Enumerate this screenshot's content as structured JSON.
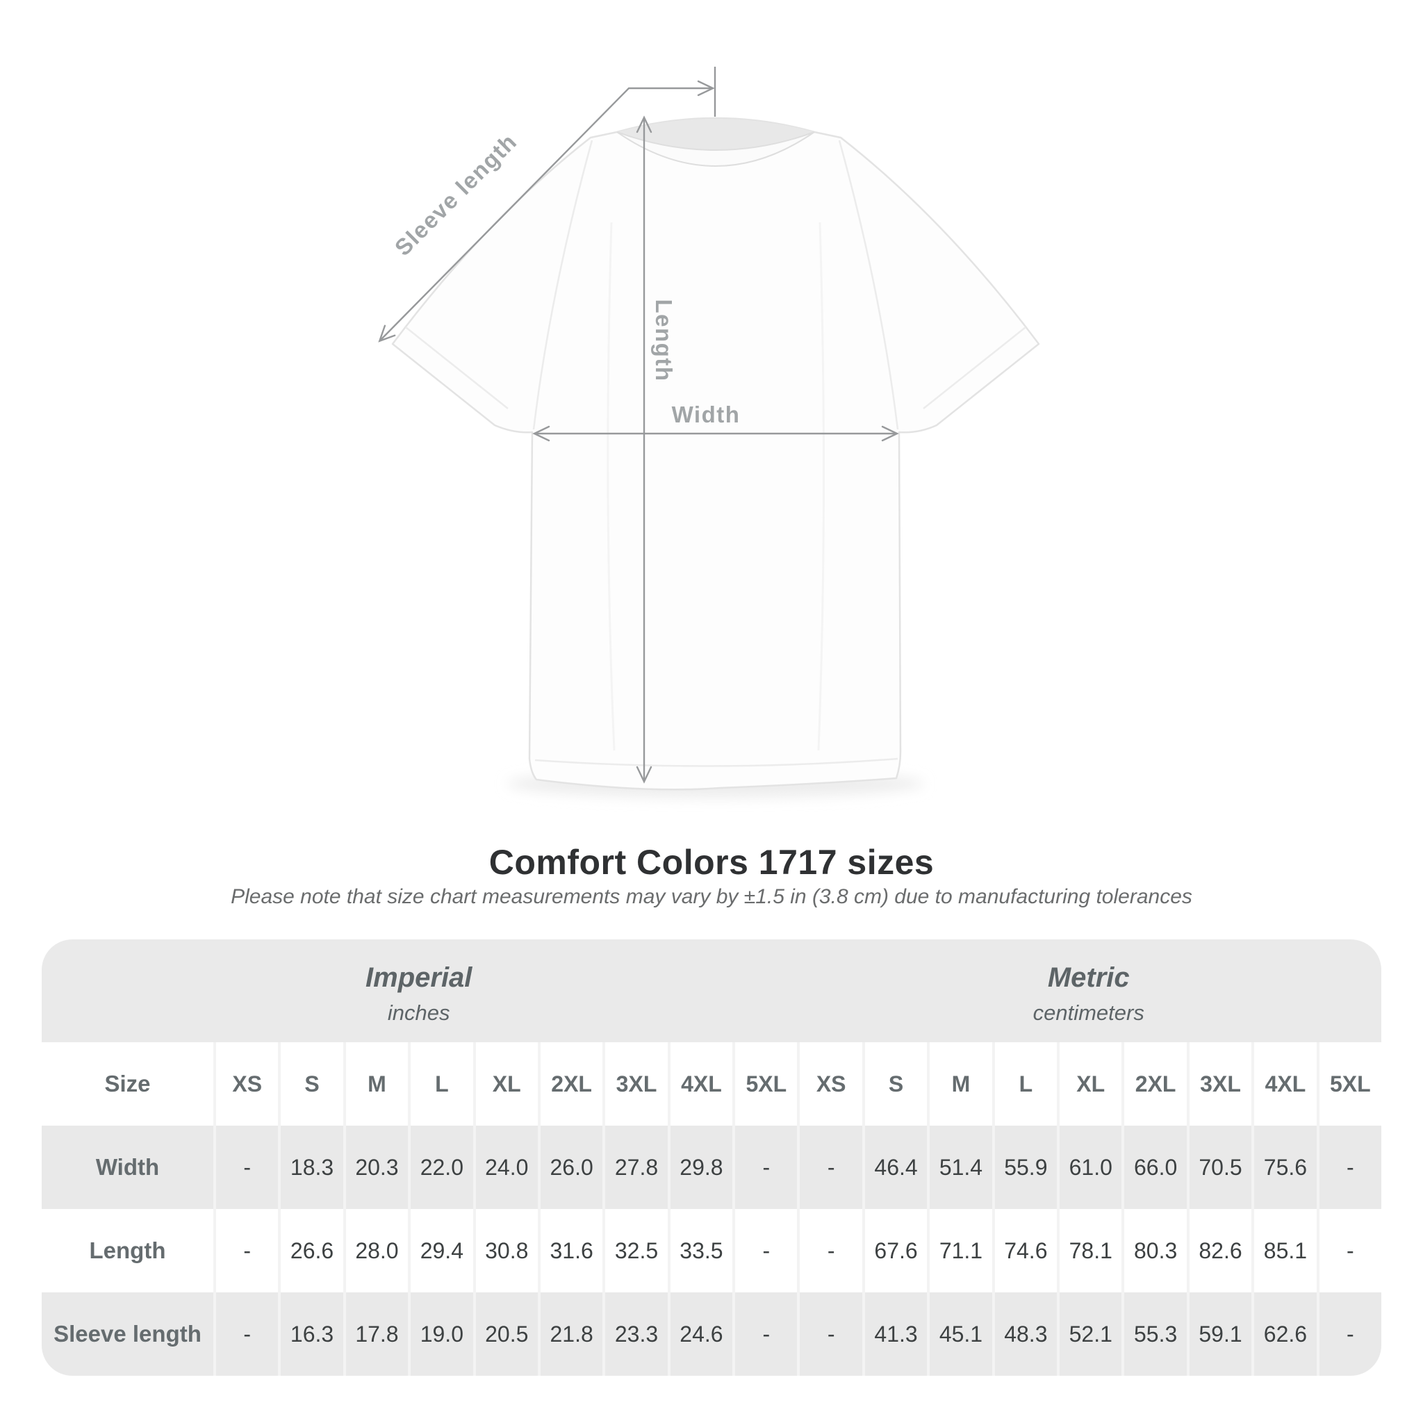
{
  "chart_data": {
    "type": "table",
    "title": "Comfort Colors 1717 sizes",
    "note": "Please note that size chart measurements may vary by ±1.5 in (3.8 cm) due to manufacturing tolerances",
    "size_column_header": "Size",
    "sizes": [
      "XS",
      "S",
      "M",
      "L",
      "XL",
      "2XL",
      "3XL",
      "4XL",
      "5XL"
    ],
    "sections": [
      {
        "name": "Imperial",
        "unit": "inches"
      },
      {
        "name": "Metric",
        "unit": "centimeters"
      }
    ],
    "rows": [
      {
        "label": "Width",
        "imperial": [
          "-",
          "18.3",
          "20.3",
          "22.0",
          "24.0",
          "26.0",
          "27.8",
          "29.8",
          "-"
        ],
        "metric": [
          "-",
          "46.4",
          "51.4",
          "55.9",
          "61.0",
          "66.0",
          "70.5",
          "75.6",
          "-"
        ]
      },
      {
        "label": "Length",
        "imperial": [
          "-",
          "26.6",
          "28.0",
          "29.4",
          "30.8",
          "31.6",
          "32.5",
          "33.5",
          "-"
        ],
        "metric": [
          "-",
          "67.6",
          "71.1",
          "74.6",
          "78.1",
          "80.3",
          "82.6",
          "85.1",
          "-"
        ]
      },
      {
        "label": "Sleeve length",
        "imperial": [
          "-",
          "16.3",
          "17.8",
          "19.0",
          "20.5",
          "21.8",
          "23.3",
          "24.6",
          "-"
        ],
        "metric": [
          "-",
          "41.3",
          "45.1",
          "48.3",
          "52.1",
          "55.3",
          "59.1",
          "62.6",
          "-"
        ]
      }
    ]
  },
  "diagram": {
    "sleeve_length": "Sleeve length",
    "length": "Length",
    "width": "Width"
  },
  "colors": {
    "header_band_bg": "#eaeaea",
    "shaded_row_bg": "#e9e9e9",
    "white_row_bg": "#ffffff",
    "cell_gap": "#f3f3f3",
    "label_text": "#656c6f",
    "value_text": "#3d4142",
    "title_text": "#2f3133",
    "note_text": "#6a6c6d",
    "measure_line": "#97999b",
    "measure_text": "#a1a5a7"
  }
}
